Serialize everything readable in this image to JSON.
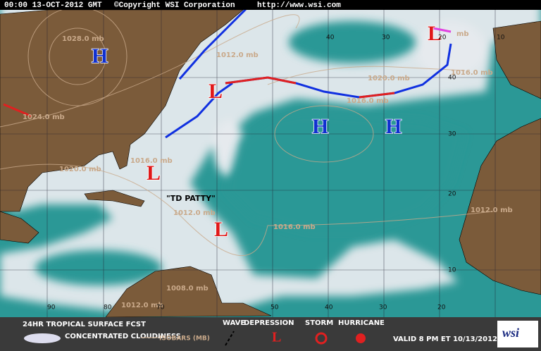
{
  "header": {
    "timestamp": "00:00 13-OCT-2012 GMT",
    "copyright": "©Copyright WSI Corporation",
    "url": "http://www.wsi.com"
  },
  "map": {
    "isobar_labels": [
      "1028.0 mb",
      "1012.0 mb",
      "1024.0 mb",
      "1020.0 mb",
      "1016.0 mb",
      "1016.0 mb",
      "1016.0 mb",
      "1020.0 mb",
      "1012.0 mb",
      "1016.0 mb",
      "1012.0 mb",
      "1008.0 mb",
      "1012.0 mb",
      "mb"
    ],
    "pressure_centers": [
      "H",
      "H",
      "H",
      "L",
      "L",
      "L",
      "L"
    ],
    "storm_label": "\"TD PATTY\"",
    "longitude_labels": [
      "90",
      "80",
      "70",
      "50",
      "40",
      "30",
      "20"
    ],
    "top_labels": [
      "40",
      "30",
      "20",
      "10"
    ],
    "latitude_labels": [
      "40",
      "30",
      "20",
      "10"
    ]
  },
  "legend": {
    "title": "24HR TROPICAL SURFACE FCST",
    "cloudiness": "CONCENTRATED CLOUDINESS",
    "isobars": "ISOBARS (MB)",
    "wave": "WAVE",
    "depression": "DEPRESSION",
    "storm": "STORM",
    "hurricane": "HURRICANE",
    "valid": "VALID 8 PM ET 10/13/2012",
    "logo": "wsi"
  }
}
